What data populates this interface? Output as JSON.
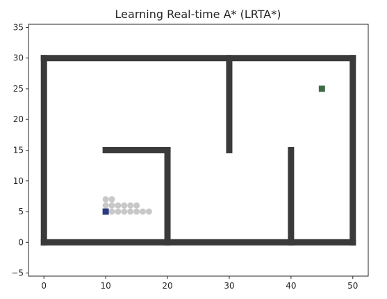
{
  "chart_data": {
    "type": "scatter",
    "title": "Learning Real-time A* (LRTA*)",
    "xlabel": "",
    "ylabel": "",
    "xlim": [
      -2.5,
      52.5
    ],
    "ylim": [
      -5.5,
      35.5
    ],
    "xticks": [
      0,
      10,
      20,
      30,
      40,
      50
    ],
    "yticks": [
      -5,
      0,
      5,
      10,
      15,
      20,
      25,
      30,
      35
    ],
    "xtick_labels": [
      "0",
      "10",
      "20",
      "30",
      "40",
      "50"
    ],
    "ytick_labels": [
      "−5",
      "0",
      "5",
      "10",
      "15",
      "20",
      "25",
      "30",
      "35"
    ],
    "grid": false,
    "legend": "none",
    "colors": {
      "obstacle": "#3a3a3a",
      "visited": "#c8c8c8",
      "start": "#2b3a80",
      "goal": "#3e6b45",
      "frame": "#262626"
    },
    "obstacles": {
      "segments": [
        {
          "from": [
            0,
            0
          ],
          "to": [
            50,
            0
          ]
        },
        {
          "from": [
            0,
            30
          ],
          "to": [
            50,
            30
          ]
        },
        {
          "from": [
            0,
            0
          ],
          "to": [
            0,
            30
          ]
        },
        {
          "from": [
            50,
            0
          ],
          "to": [
            50,
            30
          ]
        },
        {
          "from": [
            10,
            15
          ],
          "to": [
            20,
            15
          ]
        },
        {
          "from": [
            20,
            0
          ],
          "to": [
            20,
            15
          ]
        },
        {
          "from": [
            30,
            15
          ],
          "to": [
            30,
            30
          ]
        },
        {
          "from": [
            40,
            0
          ],
          "to": [
            40,
            15
          ]
        }
      ]
    },
    "visited": [
      [
        10,
        7
      ],
      [
        11,
        7
      ],
      [
        10,
        6
      ],
      [
        11,
        6
      ],
      [
        12,
        6
      ],
      [
        13,
        6
      ],
      [
        14,
        6
      ],
      [
        15,
        6
      ],
      [
        10,
        5
      ],
      [
        11,
        5
      ],
      [
        12,
        5
      ],
      [
        13,
        5
      ],
      [
        14,
        5
      ],
      [
        15,
        5
      ],
      [
        16,
        5
      ],
      [
        17,
        5
      ]
    ],
    "start": [
      10,
      5
    ],
    "goal": [
      45,
      25
    ]
  }
}
